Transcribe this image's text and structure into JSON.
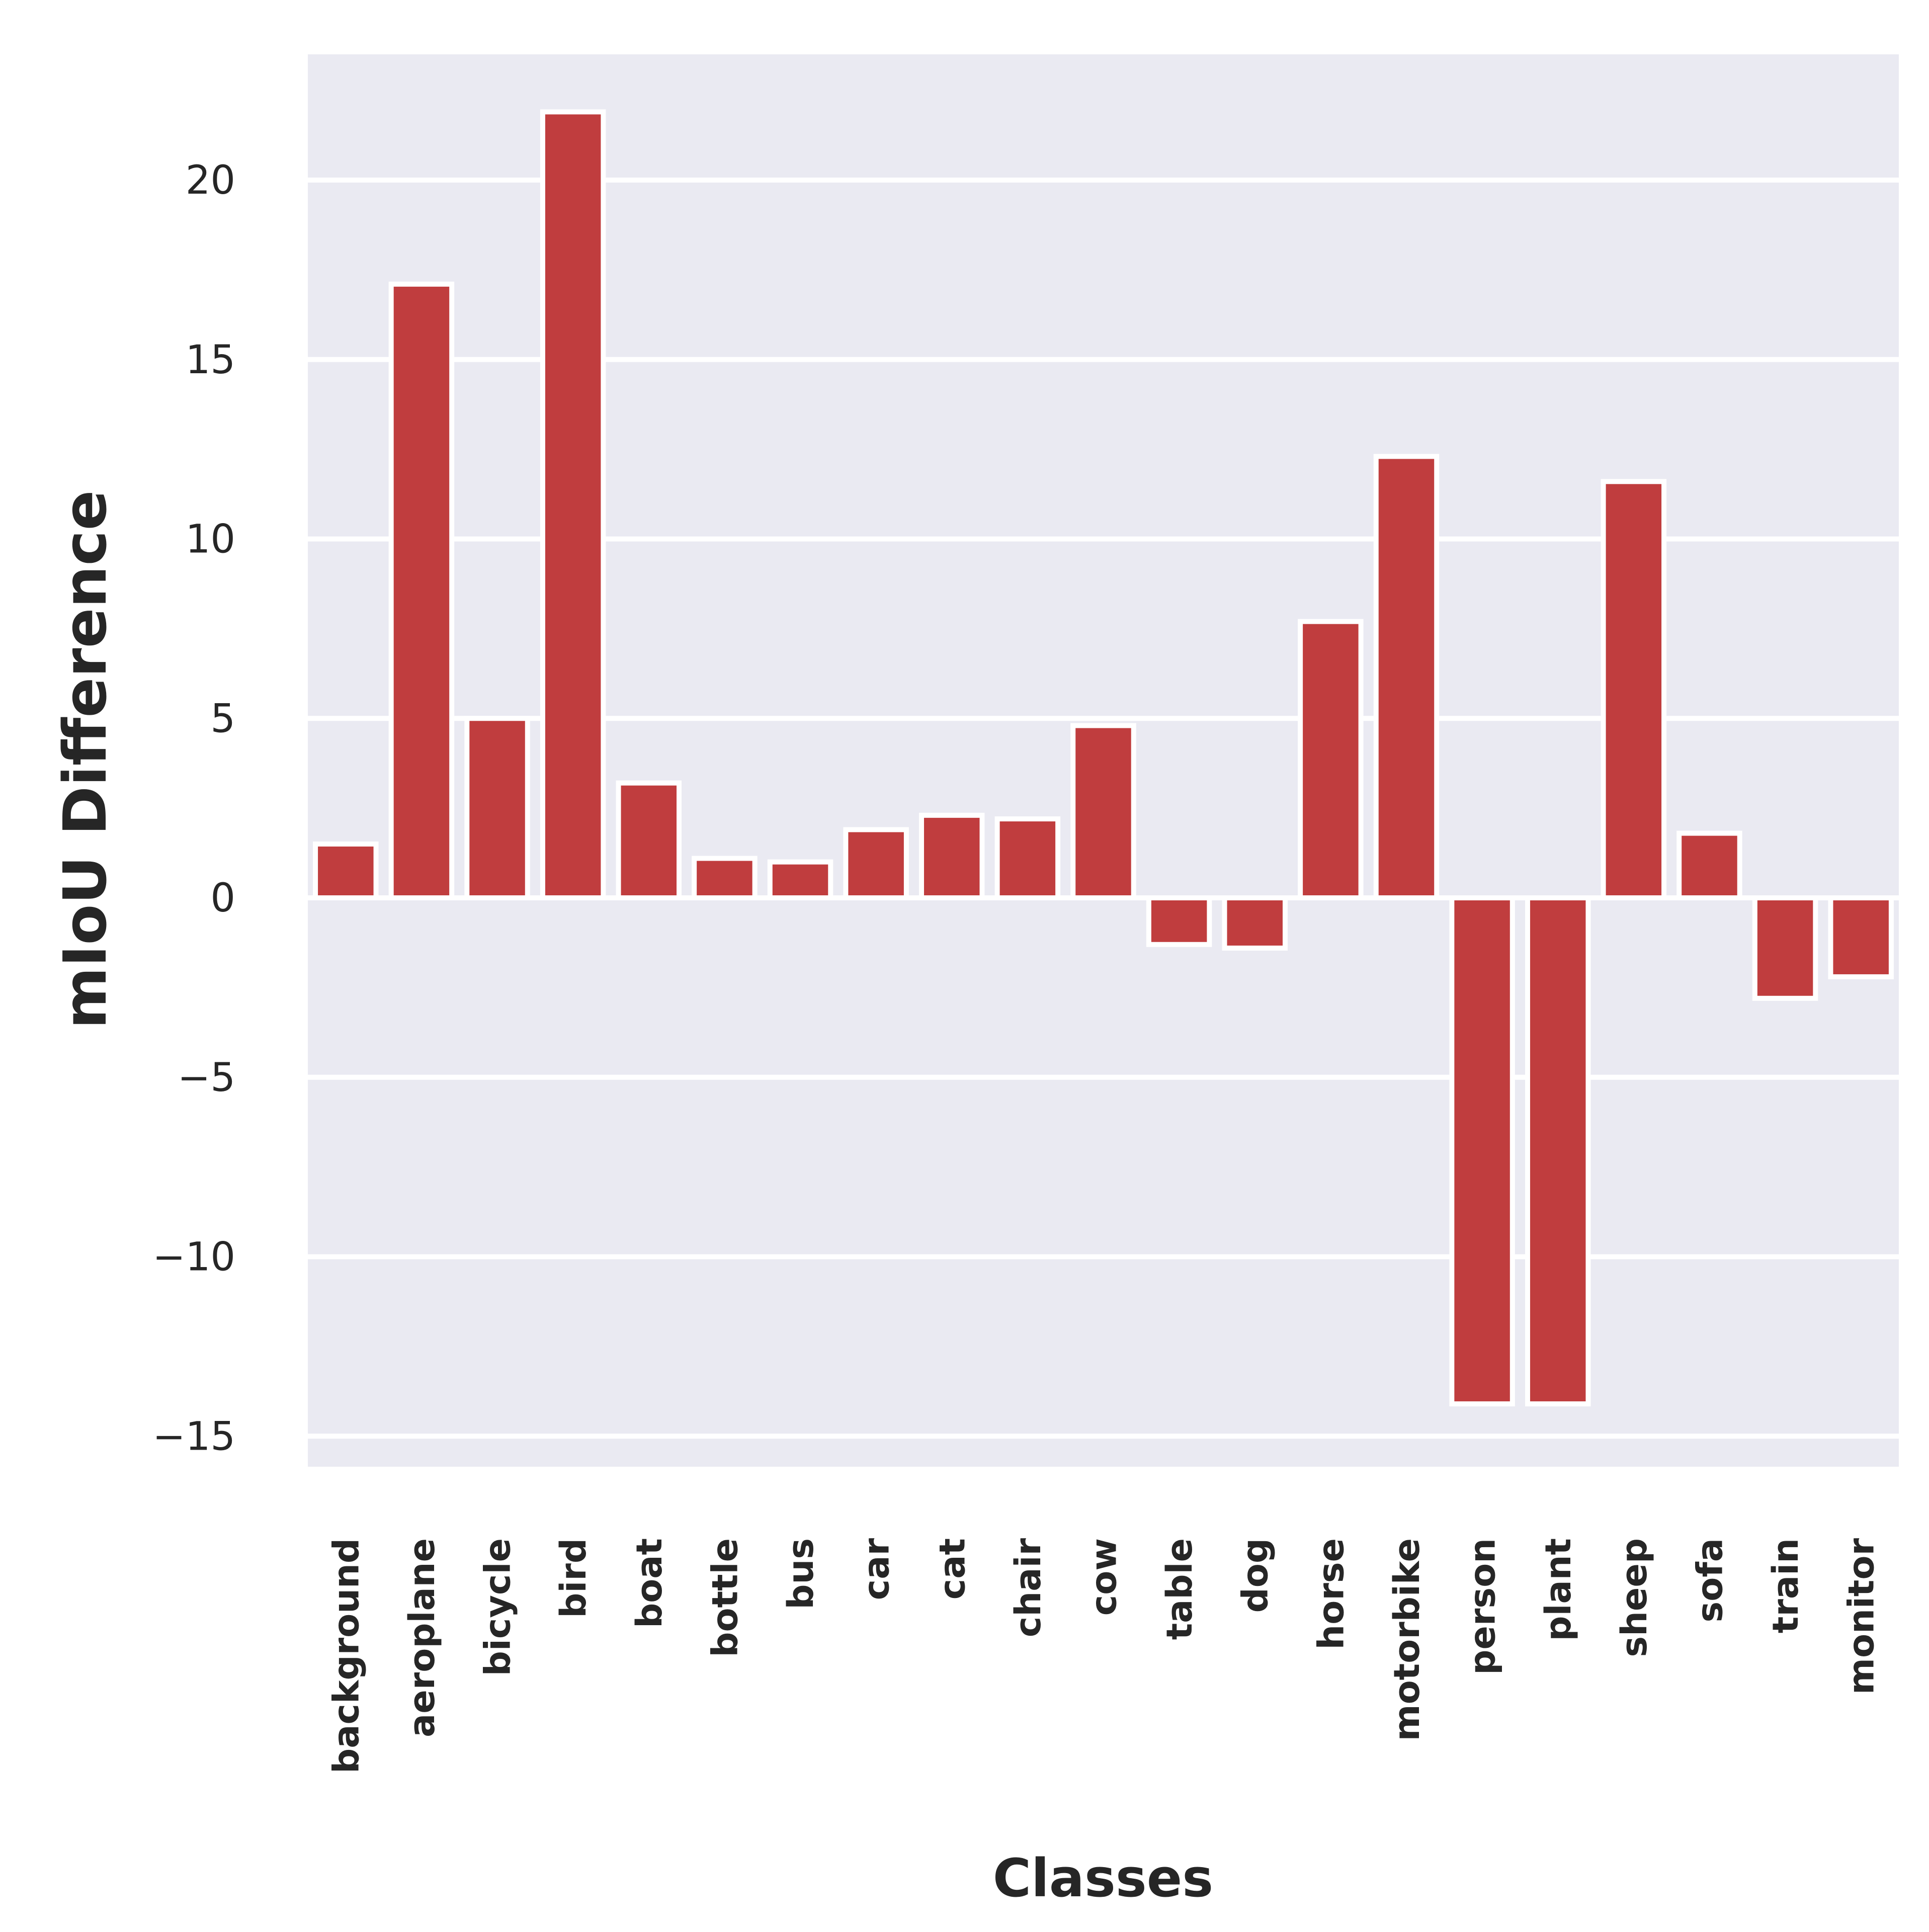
{
  "chart_data": {
    "type": "bar",
    "xlabel": "Classes",
    "ylabel": "mIoU Difference",
    "ylim": [
      -16,
      23.5
    ],
    "yticks": [
      -15,
      -10,
      -5,
      0,
      5,
      10,
      15,
      20
    ],
    "ytick_labels": [
      "−15",
      "−10",
      "−5",
      "0",
      "5",
      "10",
      "15",
      "20"
    ],
    "grid": true,
    "categories": [
      "background",
      "aeroplane",
      "bicycle",
      "bird",
      "boat",
      "bottle",
      "bus",
      "car",
      "cat",
      "chair",
      "cow",
      "table",
      "dog",
      "horse",
      "motorbike",
      "person",
      "plant",
      "sheep",
      "sofa",
      "train",
      "monitor"
    ],
    "values": [
      1.5,
      17.1,
      5.0,
      21.9,
      3.2,
      1.1,
      1.0,
      1.9,
      2.3,
      2.2,
      4.8,
      -1.3,
      -1.4,
      7.7,
      12.3,
      -14.1,
      -14.1,
      11.6,
      1.8,
      -2.8,
      -2.2
    ],
    "colors": {
      "bar": "#c03d3e",
      "plot_bg": "#eaeaf2",
      "grid": "#ffffff",
      "text": "#262626"
    }
  }
}
